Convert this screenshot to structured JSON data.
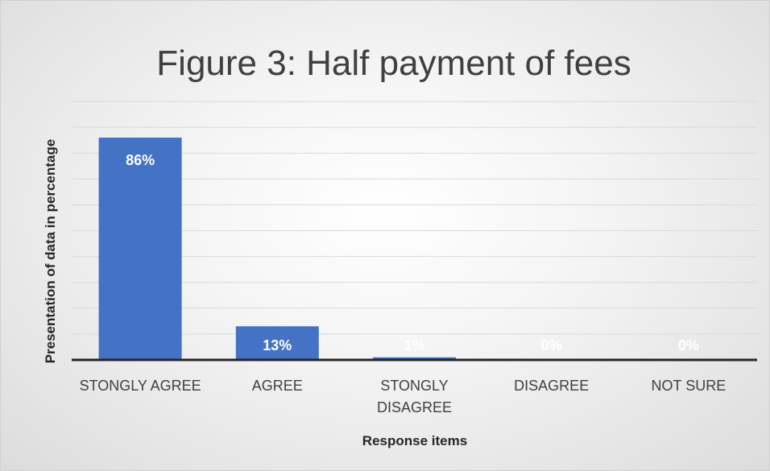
{
  "chart_data": {
    "type": "bar",
    "title": "Figure 3: Half payment of fees",
    "xlabel": "Response items",
    "ylabel": "Presentation of data in percentage",
    "categories": [
      [
        "STONGLY AGREE"
      ],
      [
        "AGREE"
      ],
      [
        "STONGLY",
        "DISAGREE"
      ],
      [
        "DISAGREE"
      ],
      [
        "NOT SURE"
      ]
    ],
    "values": [
      86,
      13,
      1,
      0,
      0
    ],
    "data_labels": [
      "86%",
      "13%",
      "1%",
      "0%",
      "0%"
    ],
    "ylim": [
      0,
      100
    ],
    "gridlines": true,
    "legend": "none",
    "bar_color": "#4472C4",
    "gridline_color": "#d9d9d9",
    "axis_color": "#262626"
  }
}
